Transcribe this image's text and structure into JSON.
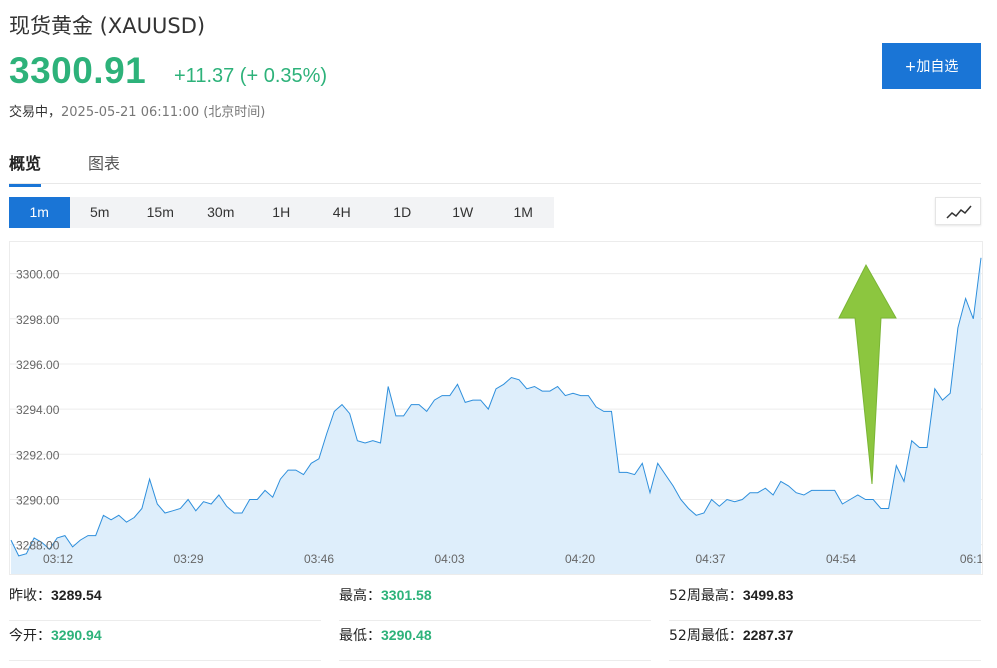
{
  "header": {
    "title": "现货黄金  (XAUUSD)",
    "price": "3300.91",
    "change": "+11.37 (+ 0.35%)",
    "status_label": "交易中，",
    "timestamp": "2025-05-21 06:11:00 (北京时间)",
    "add_watchlist_label": "+加自选"
  },
  "tabs": [
    {
      "label": "概览",
      "active": true
    },
    {
      "label": "图表",
      "active": false
    }
  ],
  "intervals": [
    {
      "label": "1m",
      "active": true
    },
    {
      "label": "5m"
    },
    {
      "label": "15m"
    },
    {
      "label": "30m"
    },
    {
      "label": "1H"
    },
    {
      "label": "4H"
    },
    {
      "label": "1D"
    },
    {
      "label": "1W"
    },
    {
      "label": "1M"
    }
  ],
  "chart_type_icon": "line-chart-icon",
  "colors": {
    "accent": "#1a75d6",
    "up": "#2db27a",
    "line": "#2e8fdc",
    "area": "#deeefb",
    "arrow": "#8cc63f"
  },
  "chart_data": {
    "type": "area",
    "yticks": [
      "3288.00",
      "3290.00",
      "3292.00",
      "3294.00",
      "3296.00",
      "3298.00",
      "3300.00"
    ],
    "xticks": [
      "03:12",
      "03:29",
      "03:46",
      "04:03",
      "04:20",
      "04:37",
      "04:54",
      "06:1"
    ],
    "ylim": [
      3286.7,
      3301.4
    ],
    "values": [
      3288.2,
      3287.5,
      3287.6,
      3288.3,
      3288.1,
      3287.8,
      3288.3,
      3288.4,
      3287.9,
      3288.2,
      3288.4,
      3288.4,
      3289.3,
      3289.1,
      3289.3,
      3289.0,
      3289.2,
      3289.6,
      3290.9,
      3289.8,
      3289.4,
      3289.5,
      3289.6,
      3290.0,
      3289.5,
      3289.9,
      3289.8,
      3290.2,
      3289.7,
      3289.4,
      3289.4,
      3290.0,
      3290.0,
      3290.4,
      3290.1,
      3290.9,
      3291.3,
      3291.3,
      3291.1,
      3291.6,
      3291.8,
      3292.9,
      3293.9,
      3294.2,
      3293.8,
      3292.6,
      3292.5,
      3292.6,
      3292.5,
      3295.0,
      3293.7,
      3293.7,
      3294.2,
      3294.2,
      3293.9,
      3294.4,
      3294.6,
      3294.6,
      3295.1,
      3294.3,
      3294.4,
      3294.4,
      3294.0,
      3294.9,
      3295.1,
      3295.4,
      3295.3,
      3294.9,
      3295.0,
      3294.8,
      3294.8,
      3295.0,
      3294.6,
      3294.7,
      3294.6,
      3294.6,
      3294.1,
      3293.9,
      3293.9,
      3291.2,
      3291.2,
      3291.1,
      3291.6,
      3290.3,
      3291.6,
      3291.1,
      3290.6,
      3290.0,
      3289.6,
      3289.3,
      3289.4,
      3290.0,
      3289.7,
      3290.0,
      3289.9,
      3290.0,
      3290.3,
      3290.3,
      3290.5,
      3290.2,
      3290.8,
      3290.6,
      3290.3,
      3290.2,
      3290.4,
      3290.4,
      3290.4,
      3290.4,
      3289.8,
      3290.0,
      3290.2,
      3290.0,
      3290.0,
      3289.6,
      3289.6,
      3291.5,
      3290.8,
      3292.6,
      3292.3,
      3292.3,
      3294.9,
      3294.4,
      3294.7,
      3297.6,
      3298.9,
      3298.0,
      3300.7
    ]
  },
  "stats": [
    {
      "label": "昨收：",
      "value": "3289.54",
      "color": "plain"
    },
    {
      "label": "最高：",
      "value": "3301.58",
      "color": "green"
    },
    {
      "label": "52周最高：",
      "value": "3499.83",
      "color": "plain"
    },
    {
      "label": "今开：",
      "value": "3290.94",
      "color": "green"
    },
    {
      "label": "最低：",
      "value": "3290.48",
      "color": "green"
    },
    {
      "label": "52周最低：",
      "value": "2287.37",
      "color": "plain"
    }
  ]
}
